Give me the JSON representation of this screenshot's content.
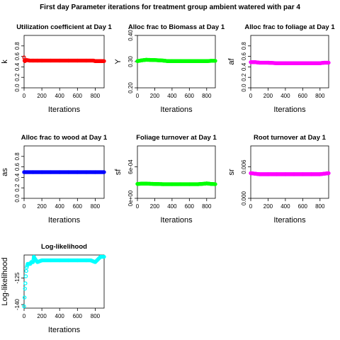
{
  "figure": {
    "title": "First day Parameter iterations for treatment group ambient watered with par 4"
  },
  "chart_data": [
    {
      "id": "k",
      "type": "scatter",
      "title": "Utilization coefficient at Day 1",
      "xlabel": "Iterations",
      "ylabel": "k",
      "xlim": [
        0,
        900
      ],
      "ylim": [
        0,
        1
      ],
      "xticks": [
        0,
        200,
        400,
        600,
        800
      ],
      "yticks": [
        0.0,
        0.2,
        0.4,
        0.6,
        0.8
      ],
      "ytick_labels": [
        "0.0",
        "0.2",
        "0.4",
        "0.6",
        "0.8"
      ],
      "color": "#ff0000",
      "x": [
        0,
        5,
        8,
        30,
        60,
        100,
        150,
        200,
        300,
        400,
        500,
        600,
        700,
        780,
        800,
        850,
        900
      ],
      "y": [
        0.58,
        0.52,
        0.51,
        0.53,
        0.52,
        0.52,
        0.52,
        0.52,
        0.52,
        0.52,
        0.52,
        0.52,
        0.52,
        0.52,
        0.51,
        0.51,
        0.51
      ]
    },
    {
      "id": "Y",
      "type": "scatter",
      "title": "Alloc frac to Biomass at Day 1",
      "xlabel": "Iterations",
      "ylabel": "Y",
      "xlim": [
        0,
        900
      ],
      "ylim": [
        0.2,
        0.4
      ],
      "xticks": [
        0,
        200,
        400,
        600,
        800
      ],
      "yticks": [
        0.2,
        0.3,
        0.4
      ],
      "ytick_labels": [
        "0.20",
        "0.30",
        "0.40"
      ],
      "color": "#00ff00",
      "x": [
        0,
        50,
        100,
        200,
        300,
        350,
        400,
        500,
        600,
        700,
        800,
        850,
        900
      ],
      "y": [
        0.302,
        0.305,
        0.307,
        0.306,
        0.304,
        0.302,
        0.302,
        0.302,
        0.302,
        0.302,
        0.302,
        0.303,
        0.303
      ]
    },
    {
      "id": "af",
      "type": "scatter",
      "title": "Alloc frac to foliage at Day 1",
      "xlabel": "Iterations",
      "ylabel": "af",
      "xlim": [
        0,
        900
      ],
      "ylim": [
        0,
        1
      ],
      "xticks": [
        0,
        200,
        400,
        600,
        800
      ],
      "yticks": [
        0.0,
        0.2,
        0.4,
        0.6,
        0.8
      ],
      "ytick_labels": [
        "0.0",
        "0.2",
        "0.4",
        "0.6",
        "0.8"
      ],
      "color": "#ff00ff",
      "x": [
        0,
        50,
        100,
        200,
        300,
        400,
        500,
        600,
        700,
        800,
        850,
        900
      ],
      "y": [
        0.49,
        0.49,
        0.48,
        0.48,
        0.47,
        0.47,
        0.47,
        0.47,
        0.47,
        0.47,
        0.48,
        0.48
      ]
    },
    {
      "id": "as",
      "type": "scatter",
      "title": "Alloc frac to wood at Day 1",
      "xlabel": "Iterations",
      "ylabel": "as",
      "xlim": [
        0,
        900
      ],
      "ylim": [
        0,
        1
      ],
      "xticks": [
        0,
        200,
        400,
        600,
        800
      ],
      "yticks": [
        0.0,
        0.2,
        0.4,
        0.6,
        0.8
      ],
      "ytick_labels": [
        "0.0",
        "0.2",
        "0.4",
        "0.6",
        "0.8"
      ],
      "color": "#0000ff",
      "x": [
        0,
        100,
        200,
        300,
        400,
        500,
        600,
        700,
        800,
        900
      ],
      "y": [
        0.5,
        0.5,
        0.5,
        0.5,
        0.5,
        0.5,
        0.5,
        0.5,
        0.5,
        0.5
      ]
    },
    {
      "id": "sf",
      "type": "scatter",
      "title": "Foliage turnover at Day 1",
      "xlabel": "Iterations",
      "ylabel": "sf",
      "xlim": [
        0,
        900
      ],
      "ylim": [
        0,
        0.001
      ],
      "xticks": [
        0,
        200,
        400,
        600,
        800
      ],
      "yticks": [
        0,
        0.0006
      ],
      "ytick_labels": [
        "0e+00",
        "6e-04"
      ],
      "color": "#00ff00",
      "x": [
        0,
        50,
        100,
        200,
        300,
        400,
        500,
        600,
        700,
        780,
        800,
        850,
        900
      ],
      "y": [
        0.000275,
        0.00028,
        0.00028,
        0.000275,
        0.00027,
        0.00027,
        0.00027,
        0.00027,
        0.00027,
        0.00028,
        0.000285,
        0.000275,
        0.00027
      ]
    },
    {
      "id": "sr",
      "type": "scatter",
      "title": "Root turnover at Day 1",
      "xlabel": "Iterations",
      "ylabel": "sr",
      "xlim": [
        0,
        900
      ],
      "ylim": [
        0,
        0.01
      ],
      "xticks": [
        0,
        200,
        400,
        600,
        800
      ],
      "yticks": [
        0,
        0.006
      ],
      "ytick_labels": [
        "0.000",
        "0.006"
      ],
      "color": "#ff00ff",
      "x": [
        0,
        50,
        100,
        200,
        300,
        400,
        500,
        600,
        700,
        800,
        850,
        900
      ],
      "y": [
        0.0048,
        0.0047,
        0.0046,
        0.0046,
        0.0046,
        0.0046,
        0.0046,
        0.0046,
        0.0046,
        0.0046,
        0.0047,
        0.0048
      ]
    },
    {
      "id": "loglik",
      "type": "scatter",
      "title": "Log-likelihood",
      "xlabel": "Iterations",
      "ylabel": "Log-likelihood",
      "xlim": [
        0,
        900
      ],
      "ylim": [
        -142,
        -112
      ],
      "xticks": [
        0,
        200,
        400,
        600,
        800
      ],
      "yticks": [
        -140,
        -125
      ],
      "ytick_labels": [
        "-140",
        "-125"
      ],
      "color": "#00ffff",
      "x": [
        0,
        5,
        10,
        15,
        20,
        25,
        30,
        35,
        40,
        50,
        60,
        70,
        80,
        90,
        100,
        110,
        120,
        150,
        200,
        300,
        400,
        500,
        600,
        700,
        750,
        800,
        820,
        840,
        860,
        880,
        900
      ],
      "y": [
        -141,
        -136,
        -131,
        -128,
        -124,
        -121,
        -119,
        -118,
        -117,
        -117,
        -117,
        -117,
        -116,
        -116,
        -116,
        -113,
        -114,
        -116,
        -115,
        -115,
        -115,
        -115,
        -115,
        -115,
        -115,
        -116,
        -115,
        -114,
        -113,
        -113,
        -113
      ]
    }
  ]
}
